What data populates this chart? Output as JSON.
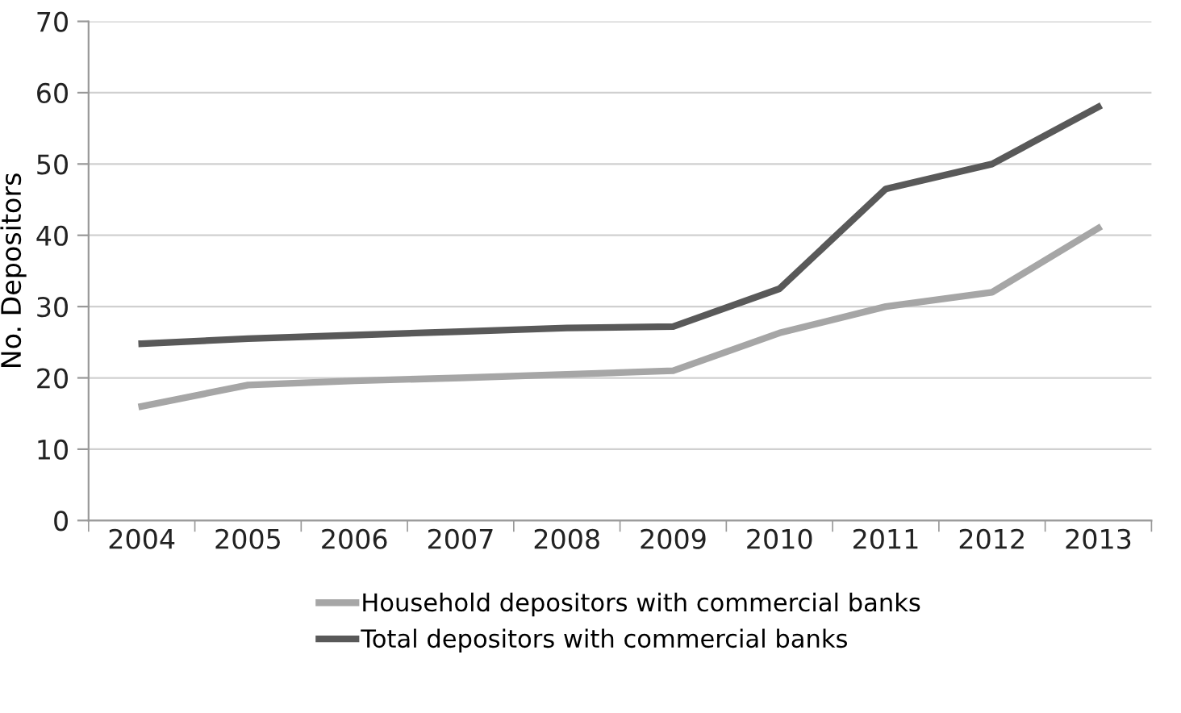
{
  "chart_data": {
    "type": "line",
    "ylabel": "No. Depositors",
    "categories": [
      "2004",
      "2005",
      "2006",
      "2007",
      "2008",
      "2009",
      "2010",
      "2011",
      "2012",
      "2013"
    ],
    "series": [
      {
        "name": "Household depositors with commercial banks",
        "color": "#a6a6a6",
        "values": [
          16,
          19,
          19.6,
          20,
          20.5,
          21,
          26.3,
          30,
          32,
          41
        ]
      },
      {
        "name": "Total depositors with commercial banks",
        "color": "#595959",
        "values": [
          24.8,
          25.5,
          26,
          26.5,
          27,
          27.2,
          32.5,
          46.5,
          50,
          58
        ]
      }
    ],
    "ylim": [
      0,
      70
    ],
    "yticks": [
      0,
      10,
      20,
      30,
      40,
      50,
      60,
      70
    ],
    "grid": "y",
    "legend": "bottom",
    "marker": "none",
    "line_style": "solid"
  }
}
